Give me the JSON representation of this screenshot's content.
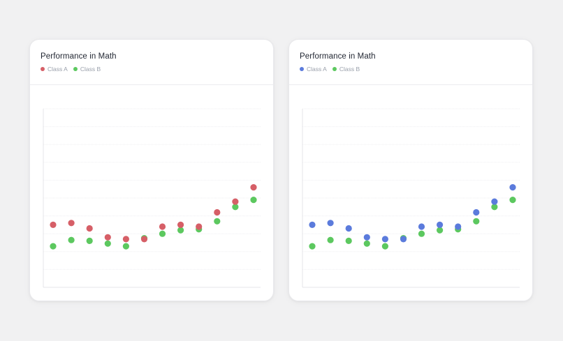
{
  "cards": [
    {
      "title": "Performance in Math",
      "legend": [
        {
          "label": "Class A",
          "color": "#d65f67"
        },
        {
          "label": "Class B",
          "color": "#5cc85f"
        }
      ]
    },
    {
      "title": "Performance in Math",
      "legend": [
        {
          "label": "Class A",
          "color": "#5b7bdc"
        },
        {
          "label": "Class B",
          "color": "#5cc85f"
        }
      ]
    }
  ],
  "chart_data": [
    {
      "type": "scatter",
      "title": "Performance in Math",
      "grid": true,
      "legend_position": "top-left",
      "ylim": [
        0,
        10
      ],
      "series": [
        {
          "name": "Class A",
          "color": "#d65f67",
          "points": [
            [
              1,
              3.5
            ],
            [
              2,
              3.6
            ],
            [
              3,
              3.3
            ],
            [
              4,
              2.8
            ],
            [
              5,
              2.7
            ],
            [
              6,
              2.7
            ],
            [
              7,
              3.4
            ],
            [
              8,
              3.5
            ],
            [
              9,
              3.4
            ],
            [
              10,
              4.2
            ],
            [
              11,
              4.8
            ],
            [
              12,
              5.6
            ]
          ]
        },
        {
          "name": "Class B",
          "color": "#5cc85f",
          "points": [
            [
              1,
              2.3
            ],
            [
              2,
              2.65
            ],
            [
              3,
              2.6
            ],
            [
              4,
              2.45
            ],
            [
              5,
              2.3
            ],
            [
              6,
              2.75
            ],
            [
              7,
              3.0
            ],
            [
              8,
              3.2
            ],
            [
              9,
              3.25
            ],
            [
              10,
              3.7
            ],
            [
              11,
              4.5
            ],
            [
              12,
              4.9
            ]
          ]
        }
      ]
    },
    {
      "type": "scatter",
      "title": "Performance in Math",
      "grid": true,
      "legend_position": "top-left",
      "ylim": [
        0,
        10
      ],
      "series": [
        {
          "name": "Class A",
          "color": "#5b7bdc",
          "points": [
            [
              1,
              3.5
            ],
            [
              2,
              3.6
            ],
            [
              3,
              3.3
            ],
            [
              4,
              2.8
            ],
            [
              5,
              2.7
            ],
            [
              6,
              2.7
            ],
            [
              7,
              3.4
            ],
            [
              8,
              3.5
            ],
            [
              9,
              3.4
            ],
            [
              10,
              4.2
            ],
            [
              11,
              4.8
            ],
            [
              12,
              5.6
            ]
          ]
        },
        {
          "name": "Class B",
          "color": "#5cc85f",
          "points": [
            [
              1,
              2.3
            ],
            [
              2,
              2.65
            ],
            [
              3,
              2.6
            ],
            [
              4,
              2.45
            ],
            [
              5,
              2.3
            ],
            [
              6,
              2.75
            ],
            [
              7,
              3.0
            ],
            [
              8,
              3.2
            ],
            [
              9,
              3.25
            ],
            [
              10,
              3.7
            ],
            [
              11,
              4.5
            ],
            [
              12,
              4.9
            ]
          ]
        }
      ]
    }
  ]
}
